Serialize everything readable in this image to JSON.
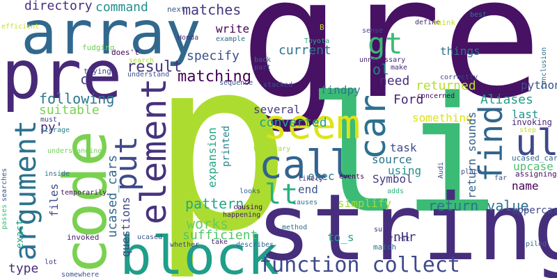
{
  "words": [
    {
      "text": "grep",
      "color": "#471164"
    },
    {
      "text": "p",
      "color": "#addc30"
    },
    {
      "text": "li",
      "color": "#3bbb75"
    },
    {
      "text": "string",
      "color": "#472e7c"
    },
    {
      "text": "array",
      "color": "#31688e"
    },
    {
      "text": "pre",
      "color": "#482878"
    },
    {
      "text": "code",
      "color": "#7ad151"
    },
    {
      "text": "block",
      "color": "#1f9e89"
    },
    {
      "text": "function collect",
      "color": "#3e4989"
    },
    {
      "text": "argument",
      "color": "#2c728e"
    },
    {
      "text": "element",
      "color": "#46327e"
    },
    {
      "text": "call",
      "color": "#32648e"
    },
    {
      "text": "seem",
      "color": "#dde318"
    },
    {
      "text": "car",
      "color": "#2c718e"
    },
    {
      "text": "ul",
      "color": "#3e4989"
    },
    {
      "text": "find",
      "color": "#31668e"
    },
    {
      "text": "gt",
      "color": "#3bbb75"
    },
    {
      "text": "put",
      "color": "#3e4a89"
    },
    {
      "text": "lt",
      "color": "#2ab07f"
    },
    {
      "text": "result",
      "color": "#46337e"
    },
    {
      "text": "matching",
      "color": "#440154"
    },
    {
      "text": "matches",
      "color": "#453781"
    },
    {
      "text": "command",
      "color": "#21918c"
    },
    {
      "text": "directory",
      "color": "#472e7c"
    },
    {
      "text": "write",
      "color": "#440154"
    },
    {
      "text": "specify",
      "color": "#3b528b"
    },
    {
      "text": "current",
      "color": "#2c728e"
    },
    {
      "text": "ol",
      "color": "#27808e"
    },
    {
      "text": "following",
      "color": "#2a778e"
    },
    {
      "text": "suitable",
      "color": "#7ad151"
    },
    {
      "text": "c",
      "color": "#414487"
    },
    {
      "text": "need",
      "color": "#472d7b"
    },
    {
      "text": "findpy",
      "color": "#2a768e"
    },
    {
      "text": "returned",
      "color": "#b5de2b"
    },
    {
      "text": "Ford",
      "color": "#482475"
    },
    {
      "text": "python",
      "color": "#3b528b"
    },
    {
      "text": "Aliases",
      "color": "#1f9e89"
    },
    {
      "text": "things",
      "color": "#2c718e"
    },
    {
      "text": "several",
      "color": "#443a83"
    },
    {
      "text": "something",
      "color": "#dde318"
    },
    {
      "text": "last",
      "color": "#20928c"
    },
    {
      "text": "invoking",
      "color": "#482475"
    },
    {
      "text": "converted",
      "color": "#1fa088"
    },
    {
      "text": "task",
      "color": "#3e4a89"
    },
    {
      "text": "source",
      "color": "#2c728e"
    },
    {
      "text": "using",
      "color": "#21908d"
    },
    {
      "text": "upcase",
      "color": "#4ac16d"
    },
    {
      "text": "name",
      "color": "#440154"
    },
    {
      "text": "Symbol",
      "color": "#453882"
    },
    {
      "text": "exec",
      "color": "#2a768e"
    },
    {
      "text": "return value",
      "color": "#2c728e"
    },
    {
      "text": "end",
      "color": "#3b528b"
    },
    {
      "text": "simplify",
      "color": "#a2da37"
    },
    {
      "text": "pattern",
      "color": "#22a884"
    },
    {
      "text": "works",
      "color": "#65cb5e"
    },
    {
      "text": "sufficient",
      "color": "#52c569"
    },
    {
      "text": "to_s",
      "color": "#1fa188"
    },
    {
      "text": "nHr",
      "color": "#453882"
    },
    {
      "text": "questions",
      "color": "#404688"
    },
    {
      "text": "expansion",
      "color": "#22a884"
    },
    {
      "text": "printed",
      "color": "#25848e"
    },
    {
      "text": "ucased_cars",
      "color": "#31688e"
    },
    {
      "text": "files",
      "color": "#3e4a89"
    },
    {
      "text": "exact",
      "color": "#1f9e89"
    },
    {
      "text": "type",
      "color": "#472c7a"
    },
    {
      "text": "py'",
      "color": "#482878"
    },
    {
      "text": "return sounds",
      "color": "#355f8d"
    },
    {
      "text": "uppercased",
      "color": "#3e4989"
    },
    {
      "text": "ucased_cars'",
      "color": "#31688e"
    },
    {
      "text": "assigning",
      "color": "#470d60"
    },
    {
      "text": "next",
      "color": "#38598c"
    },
    {
      "text": "efficient",
      "color": "#c8e020"
    },
    {
      "text": "B",
      "color": "#c2df23"
    },
    {
      "text": "Honda",
      "color": "#472d7b"
    },
    {
      "text": "example",
      "color": "#31688e"
    },
    {
      "text": "fudging",
      "color": "#6ece58"
    },
    {
      "text": "does't",
      "color": "#440154"
    },
    {
      "text": "search",
      "color": "#a8db34"
    },
    {
      "text": "trying",
      "color": "#3f4788"
    },
    {
      "text": "understand",
      "color": "#3b528b"
    },
    {
      "text": "back",
      "color": "#2d708e"
    },
    {
      "text": "part",
      "color": "#3d4e8a"
    },
    {
      "text": "sequence",
      "color": "#3b528b"
    },
    {
      "text": "Toyota",
      "color": "#29af7f"
    },
    {
      "text": "unnecessary",
      "color": "#482173"
    },
    {
      "text": "define",
      "color": "#482878"
    },
    {
      "text": "sense",
      "color": "#3d4e8a"
    },
    {
      "text": "think",
      "color": "#c8e020"
    },
    {
      "text": "best",
      "color": "#287c8e"
    },
    {
      "text": "make",
      "color": "#482677"
    },
    {
      "text": "correctly",
      "color": "#3e4989"
    },
    {
      "text": "Conclusion",
      "color": "#2d708e"
    },
    {
      "text": "concerned",
      "color": "#440154"
    },
    {
      "text": "stacked",
      "color": "#3b528b"
    },
    {
      "text": "must",
      "color": "#404588"
    },
    {
      "text": "storage",
      "color": "#27808e"
    },
    {
      "text": "understanding",
      "color": "#73d056"
    },
    {
      "text": "inside",
      "color": "#2f6c8e"
    },
    {
      "text": "temporarily",
      "color": "#471164"
    },
    {
      "text": "searches",
      "color": "#3b528b"
    },
    {
      "text": "passes",
      "color": "#3bbb75"
    },
    {
      "text": "temporary",
      "color": "#a8db34"
    },
    {
      "text": "step",
      "color": "#c2df23"
    },
    {
      "text": "place",
      "color": "#3b528b"
    },
    {
      "text": "Audi",
      "color": "#3b528b"
    },
    {
      "text": "events",
      "color": "#440154"
    },
    {
      "text": "first",
      "color": "#482475"
    },
    {
      "text": "likely",
      "color": "#46337e"
    },
    {
      "text": "looks",
      "color": "#33628d"
    },
    {
      "text": "adds",
      "color": "#2ab07f"
    },
    {
      "text": "far",
      "color": "#3b528b"
    },
    {
      "text": "causes",
      "color": "#2c728e"
    },
    {
      "text": "causing",
      "color": "#440154"
    },
    {
      "text": "happening",
      "color": "#481f70"
    },
    {
      "text": "method",
      "color": "#2f6c8e"
    },
    {
      "text": "sure",
      "color": "#472d7b"
    },
    {
      "text": "match",
      "color": "#2c728e"
    },
    {
      "text": "invoked",
      "color": "#48186a"
    },
    {
      "text": "ucased",
      "color": "#3b528b"
    },
    {
      "text": "take",
      "color": "#482677"
    },
    {
      "text": "describes",
      "color": "#31688e"
    },
    {
      "text": "whether",
      "color": "#414487"
    },
    {
      "text": "lot",
      "color": "#453781"
    },
    {
      "text": "somewhere",
      "color": "#3b528b"
    },
    {
      "text": "piled",
      "color": "#31688e"
    }
  ]
}
